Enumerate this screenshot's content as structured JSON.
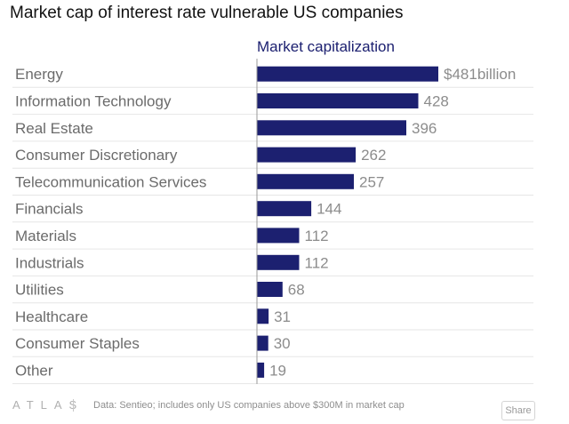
{
  "title": "Market cap of interest rate vulnerable US companies",
  "footer": {
    "logo": "ATLAS",
    "source": "Data:  Sentieo; includes only US companies above $300M in market cap",
    "share_label": "Share"
  },
  "colors": {
    "bar": "#1c2070",
    "label": "#6b6b6b",
    "value": "#8c8c8c",
    "header": "#1c2070",
    "grid": "#e6e6e6"
  },
  "chart_data": {
    "type": "bar",
    "orientation": "horizontal",
    "series": [
      {
        "name": "Market capitalization",
        "values": [
          481,
          428,
          396,
          262,
          257,
          144,
          112,
          112,
          68,
          31,
          30,
          19
        ]
      }
    ],
    "categories": [
      "Energy",
      "Information Technology",
      "Real Estate",
      "Consumer Discretionary",
      "Telecommunication Services",
      "Financials",
      "Materials",
      "Industrials",
      "Utilities",
      "Healthcare",
      "Consumer Staples",
      "Other"
    ],
    "value_labels": [
      "$481billion",
      "428",
      "396",
      "262",
      "257",
      "144",
      "112",
      "112",
      "68",
      "31",
      "30",
      "19"
    ],
    "xlim": [
      0,
      481
    ],
    "grid": true
  }
}
